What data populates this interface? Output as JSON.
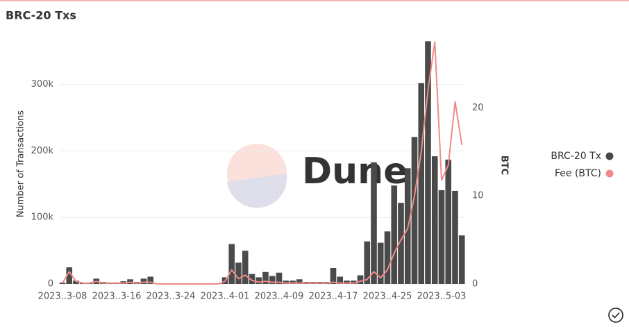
{
  "chart_data": {
    "type": "bar_line",
    "title": "BRC-20 Txs",
    "watermark": "Dune",
    "y_label": "Number of Transactions",
    "y2_label": "BTC",
    "legend": "right",
    "grid": true,
    "categories": [
      "2023..3-08",
      null,
      null,
      null,
      null,
      null,
      null,
      null,
      "2023..3-16",
      null,
      null,
      null,
      null,
      null,
      null,
      null,
      "2023..3-24",
      null,
      null,
      null,
      null,
      null,
      null,
      null,
      "2023..4-01",
      null,
      null,
      null,
      null,
      null,
      null,
      null,
      "2023..4-09",
      null,
      null,
      null,
      null,
      null,
      null,
      null,
      "2023..4-17",
      null,
      null,
      null,
      null,
      null,
      null,
      null,
      "2023..4-25",
      null,
      null,
      null,
      null,
      null,
      null,
      null,
      "2023..5-03",
      null,
      null,
      null
    ],
    "ylim": [
      0,
      380000
    ],
    "yticks": [
      {
        "value": 0,
        "label": "0"
      },
      {
        "value": 100000,
        "label": "100k"
      },
      {
        "value": 200000,
        "label": "200k"
      },
      {
        "value": 300000,
        "label": "300k"
      }
    ],
    "y2lim": [
      0,
      28.7
    ],
    "y2ticks": [
      0,
      10,
      20
    ],
    "series": [
      {
        "name": "BRC-20 Tx",
        "kind": "bar",
        "color": "#4a4a4a",
        "values": [
          2000,
          25000,
          5000,
          1000,
          1000,
          8000,
          3000,
          2000,
          1000,
          4000,
          7000,
          3000,
          8000,
          11000,
          500,
          500,
          500,
          500,
          500,
          500,
          500,
          500,
          500,
          1000,
          10000,
          60000,
          32000,
          50000,
          15000,
          10000,
          18000,
          12000,
          17000,
          5000,
          5000,
          7000,
          3000,
          3000,
          3000,
          3000,
          24000,
          11000,
          5000,
          5000,
          13000,
          64000,
          183000,
          62000,
          79000,
          148000,
          122000,
          174000,
          221000,
          302000,
          365000,
          192000,
          141000,
          187000,
          140000,
          73000
        ]
      },
      {
        "name": "Fee (BTC)",
        "kind": "line",
        "axis": "y2",
        "color": "#f08a8a",
        "values": [
          0.1,
          1.4,
          0.3,
          0.1,
          0.1,
          0.3,
          0.1,
          0.1,
          0.1,
          0.1,
          0.2,
          0.1,
          0.2,
          0.2,
          0,
          0,
          0,
          0,
          0,
          0,
          0,
          0,
          0,
          0,
          0.3,
          1.6,
          0.6,
          1.0,
          0.4,
          0.2,
          0.3,
          0.2,
          0.2,
          0.1,
          0.1,
          0.1,
          0.1,
          0.1,
          0.1,
          0.1,
          0.2,
          0.1,
          0.1,
          0.1,
          0.3,
          0.5,
          1.4,
          0.7,
          1.6,
          3.5,
          5.0,
          6.3,
          10,
          15,
          22,
          27.5,
          11.8,
          13.5,
          20.7,
          15.8
        ]
      }
    ]
  }
}
